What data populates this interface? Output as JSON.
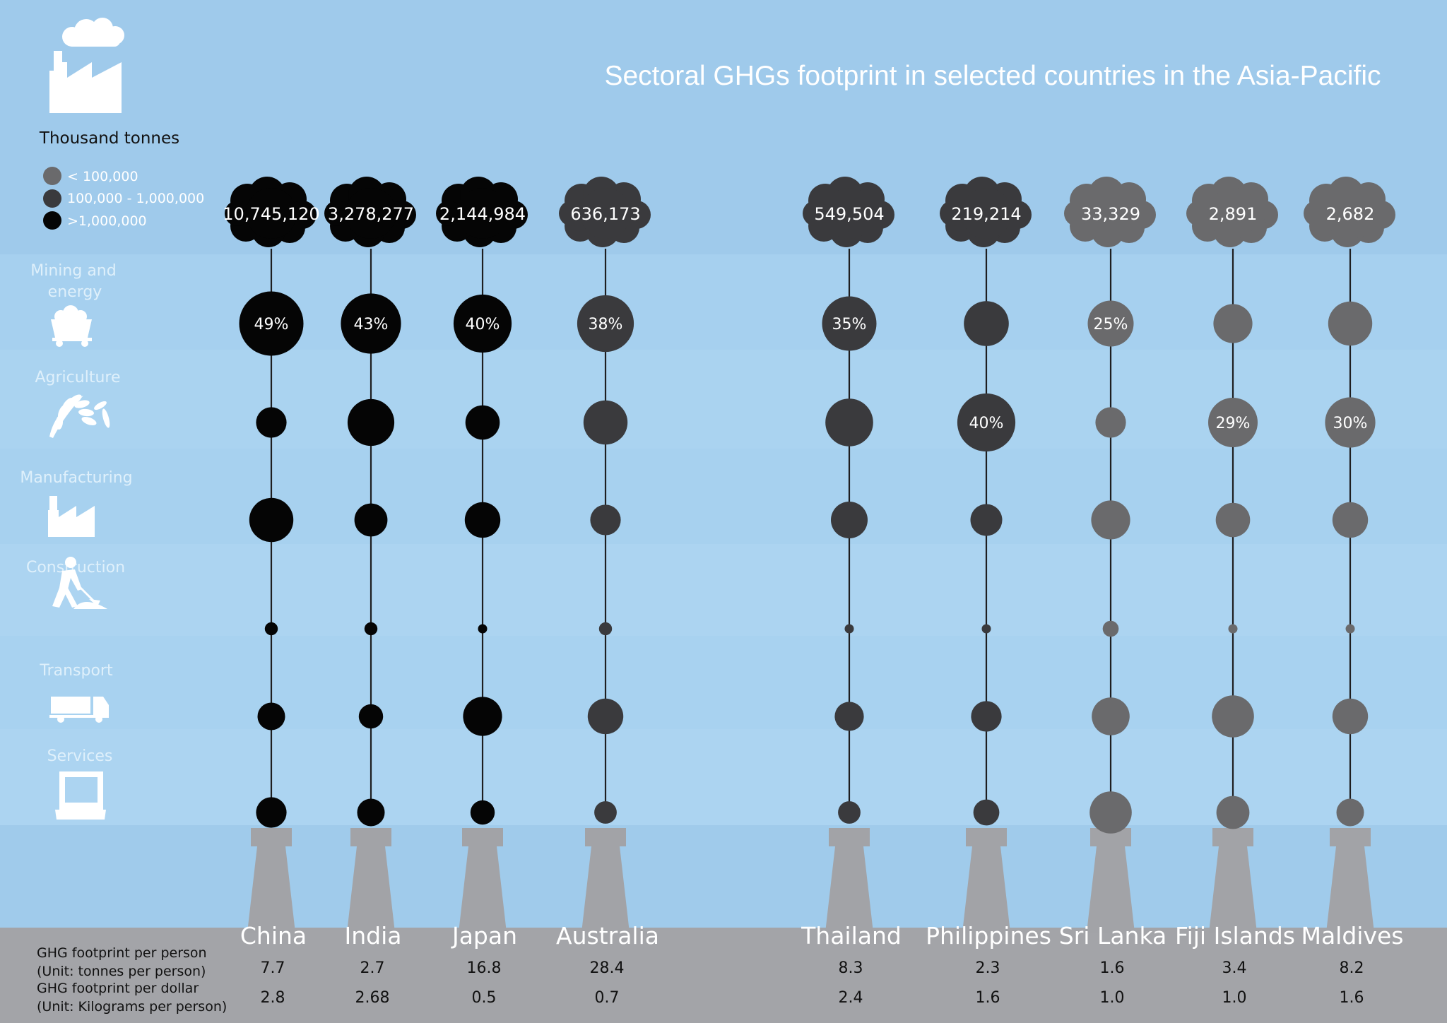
{
  "chart_data": {
    "type": "bubble",
    "title": "Sectoral GHGs footprint in selected countries in the Asia-Pacific",
    "unit_label": "Thousand tonnes",
    "legend": [
      {
        "label": "< 100,000",
        "color": "#6a6a6c"
      },
      {
        "label": "100,000 - 1,000,000",
        "color": "#3a3a3d"
      },
      {
        "label": ">1,000,000",
        "color": "#050505"
      }
    ],
    "sectors": [
      {
        "name": "Mining and energy",
        "lines": [
          "Mining and",
          "energy"
        ],
        "icon": "mining-cart-icon"
      },
      {
        "name": "Agriculture",
        "lines": [
          "Agriculture"
        ],
        "icon": "wheat-icon"
      },
      {
        "name": "Manufacturing",
        "lines": [
          "Manufacturing"
        ],
        "icon": "factory-icon"
      },
      {
        "name": "Construction",
        "lines": [
          "Construction"
        ],
        "icon": "worker-shovel-icon"
      },
      {
        "name": "Transport",
        "lines": [
          "Transport"
        ],
        "icon": "truck-icon"
      },
      {
        "name": "Services",
        "lines": [
          "Services"
        ],
        "icon": "computer-icon"
      }
    ],
    "countries": [
      {
        "name": "China",
        "total": "10,745,120",
        "color": "#050505",
        "shares": [
          49,
          11,
          23,
          2,
          9,
          11
        ],
        "pct_labels": [
          "49%",
          "",
          "",
          "",
          "",
          ""
        ],
        "per_person": "7.7",
        "per_dollar": "2.8"
      },
      {
        "name": "India",
        "total": "3,278,277",
        "color": "#050505",
        "shares": [
          43,
          26,
          13,
          2,
          7,
          9
        ],
        "pct_labels": [
          "43%",
          "",
          "",
          "",
          "",
          ""
        ],
        "per_person": "2.7",
        "per_dollar": "2.68"
      },
      {
        "name": "Japan",
        "total": "2,144,984",
        "color": "#050505",
        "shares": [
          40,
          14,
          15,
          1,
          18,
          7
        ],
        "pct_labels": [
          "40%",
          "",
          "",
          "",
          "",
          ""
        ],
        "per_person": "16.8",
        "per_dollar": "0.5"
      },
      {
        "name": "Australia",
        "total": "636,173",
        "color": "#3a3a3d",
        "shares": [
          38,
          23,
          11,
          2,
          15,
          6
        ],
        "pct_labels": [
          "38%",
          "",
          "",
          "",
          "",
          ""
        ],
        "per_person": "28.4",
        "per_dollar": "0.7"
      },
      {
        "name": "Thailand",
        "total": "549,504",
        "color": "#3a3a3d",
        "shares": [
          35,
          27,
          16,
          1,
          10,
          6
        ],
        "pct_labels": [
          "35%",
          "",
          "",
          "",
          "",
          ""
        ],
        "per_person": "8.3",
        "per_dollar": "2.4"
      },
      {
        "name": "Philippines",
        "total": "219,214",
        "color": "#3a3a3d",
        "shares": [
          24,
          40,
          12,
          1,
          11,
          8
        ],
        "pct_labels": [
          "",
          "40%",
          "",
          "",
          "",
          ""
        ],
        "per_person": "2.3",
        "per_dollar": "1.6"
      },
      {
        "name": "Sri Lanka",
        "total": "33,329",
        "color": "#6a6a6c",
        "shares": [
          25,
          11,
          18,
          3,
          17,
          21
        ],
        "pct_labels": [
          "25%",
          "",
          "",
          "",
          "",
          ""
        ],
        "per_person": "1.6",
        "per_dollar": "1.0"
      },
      {
        "name": "Fiji Islands",
        "total": "2,891",
        "color": "#6a6a6c",
        "shares": [
          18,
          29,
          14,
          1,
          21,
          13
        ],
        "pct_labels": [
          "",
          "29%",
          "",
          "",
          "",
          ""
        ],
        "per_person": "3.4",
        "per_dollar": "1.0"
      },
      {
        "name": "Maldives",
        "total": "2,682",
        "color": "#6a6a6c",
        "shares": [
          23,
          30,
          15,
          1,
          15,
          9
        ],
        "pct_labels": [
          "",
          "30%",
          "",
          "",
          "",
          ""
        ],
        "per_person": "8.2",
        "per_dollar": "1.6"
      }
    ],
    "footer_rows": [
      {
        "label": "GHG footprint per person",
        "sublabel": "(Unit: tonnes per person)",
        "key": "per_person"
      },
      {
        "label": "GHG footprint per dollar",
        "sublabel": "(Unit: Kilograms per person)",
        "key": "per_dollar"
      }
    ]
  }
}
